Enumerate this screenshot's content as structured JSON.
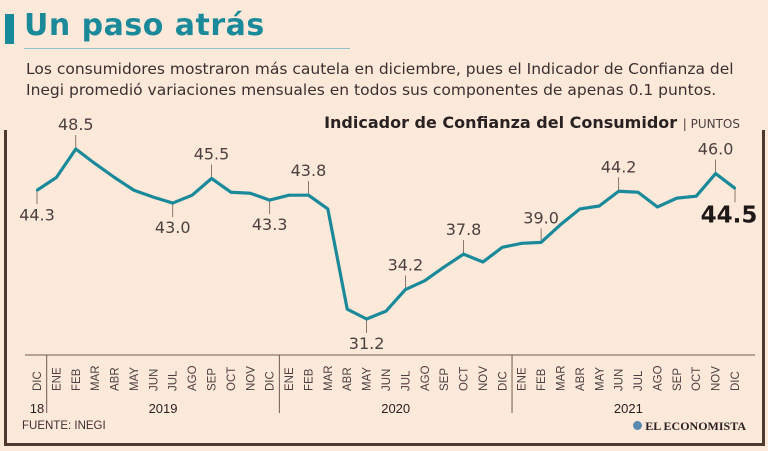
{
  "header": {
    "title": "Un paso atrás",
    "subtitle": "Los consumidores mostraron más cautela en diciembre, pues el Indicador de Confianza del Inegi promedió variaciones mensuales en todos sus componentes de apenas 0.1 puntos."
  },
  "colors": {
    "accent": "#1a8a9a",
    "background": "#fde9da",
    "frame": "#4a3a30"
  },
  "chart_data": {
    "type": "line",
    "title": "Indicador de Confianza del Consumidor",
    "unit": "PUNTOS",
    "x": [
      "DIC",
      "ENE",
      "FEB",
      "MAR",
      "ABR",
      "MAY",
      "JUN",
      "JUL",
      "AGO",
      "SEP",
      "OCT",
      "NOV",
      "DIC",
      "ENE",
      "FEB",
      "MAR",
      "ABR",
      "MAY",
      "JUN",
      "JUL",
      "AGO",
      "SEP",
      "OCT",
      "NOV",
      "DIC",
      "ENE",
      "FEB",
      "MAR",
      "ABR",
      "MAY",
      "JUN",
      "JUL",
      "AGO",
      "SEP",
      "OCT",
      "NOV",
      "DIC"
    ],
    "years": [
      {
        "label": "18",
        "start": 0,
        "end": 0
      },
      {
        "label": "2019",
        "start": 1,
        "end": 12
      },
      {
        "label": "2020",
        "start": 13,
        "end": 24
      },
      {
        "label": "2021",
        "start": 25,
        "end": 36
      }
    ],
    "series": [
      {
        "values": [
          44.3,
          45.6,
          48.5,
          47.0,
          45.6,
          44.3,
          43.6,
          43.0,
          43.8,
          45.5,
          44.1,
          44.0,
          43.3,
          43.8,
          43.8,
          42.4,
          32.2,
          31.2,
          32.0,
          34.2,
          35.1,
          36.5,
          37.8,
          37.0,
          38.5,
          38.9,
          39.0,
          40.8,
          42.4,
          42.7,
          44.2,
          44.1,
          42.6,
          43.5,
          43.7,
          46.0,
          44.5
        ]
      }
    ],
    "annotations": [
      {
        "index": 0,
        "label": "44.3",
        "pos": "below"
      },
      {
        "index": 2,
        "label": "48.5",
        "pos": "above"
      },
      {
        "index": 7,
        "label": "43.0",
        "pos": "below"
      },
      {
        "index": 9,
        "label": "45.5",
        "pos": "above"
      },
      {
        "index": 12,
        "label": "43.3",
        "pos": "below"
      },
      {
        "index": 14,
        "label": "43.8",
        "pos": "above"
      },
      {
        "index": 17,
        "label": "31.2",
        "pos": "below"
      },
      {
        "index": 19,
        "label": "34.2",
        "pos": "above"
      },
      {
        "index": 22,
        "label": "37.8",
        "pos": "above"
      },
      {
        "index": 26,
        "label": "39.0",
        "pos": "above"
      },
      {
        "index": 30,
        "label": "44.2",
        "pos": "above"
      },
      {
        "index": 35,
        "label": "46.0",
        "pos": "above"
      },
      {
        "index": 36,
        "label": "44.5",
        "pos": "below",
        "bold": true
      }
    ],
    "ylim": [
      31.2,
      48.5
    ],
    "grid": false
  },
  "footer": {
    "source": "FUENTE: INEGI",
    "logo": "EL ECONOMISTA"
  }
}
